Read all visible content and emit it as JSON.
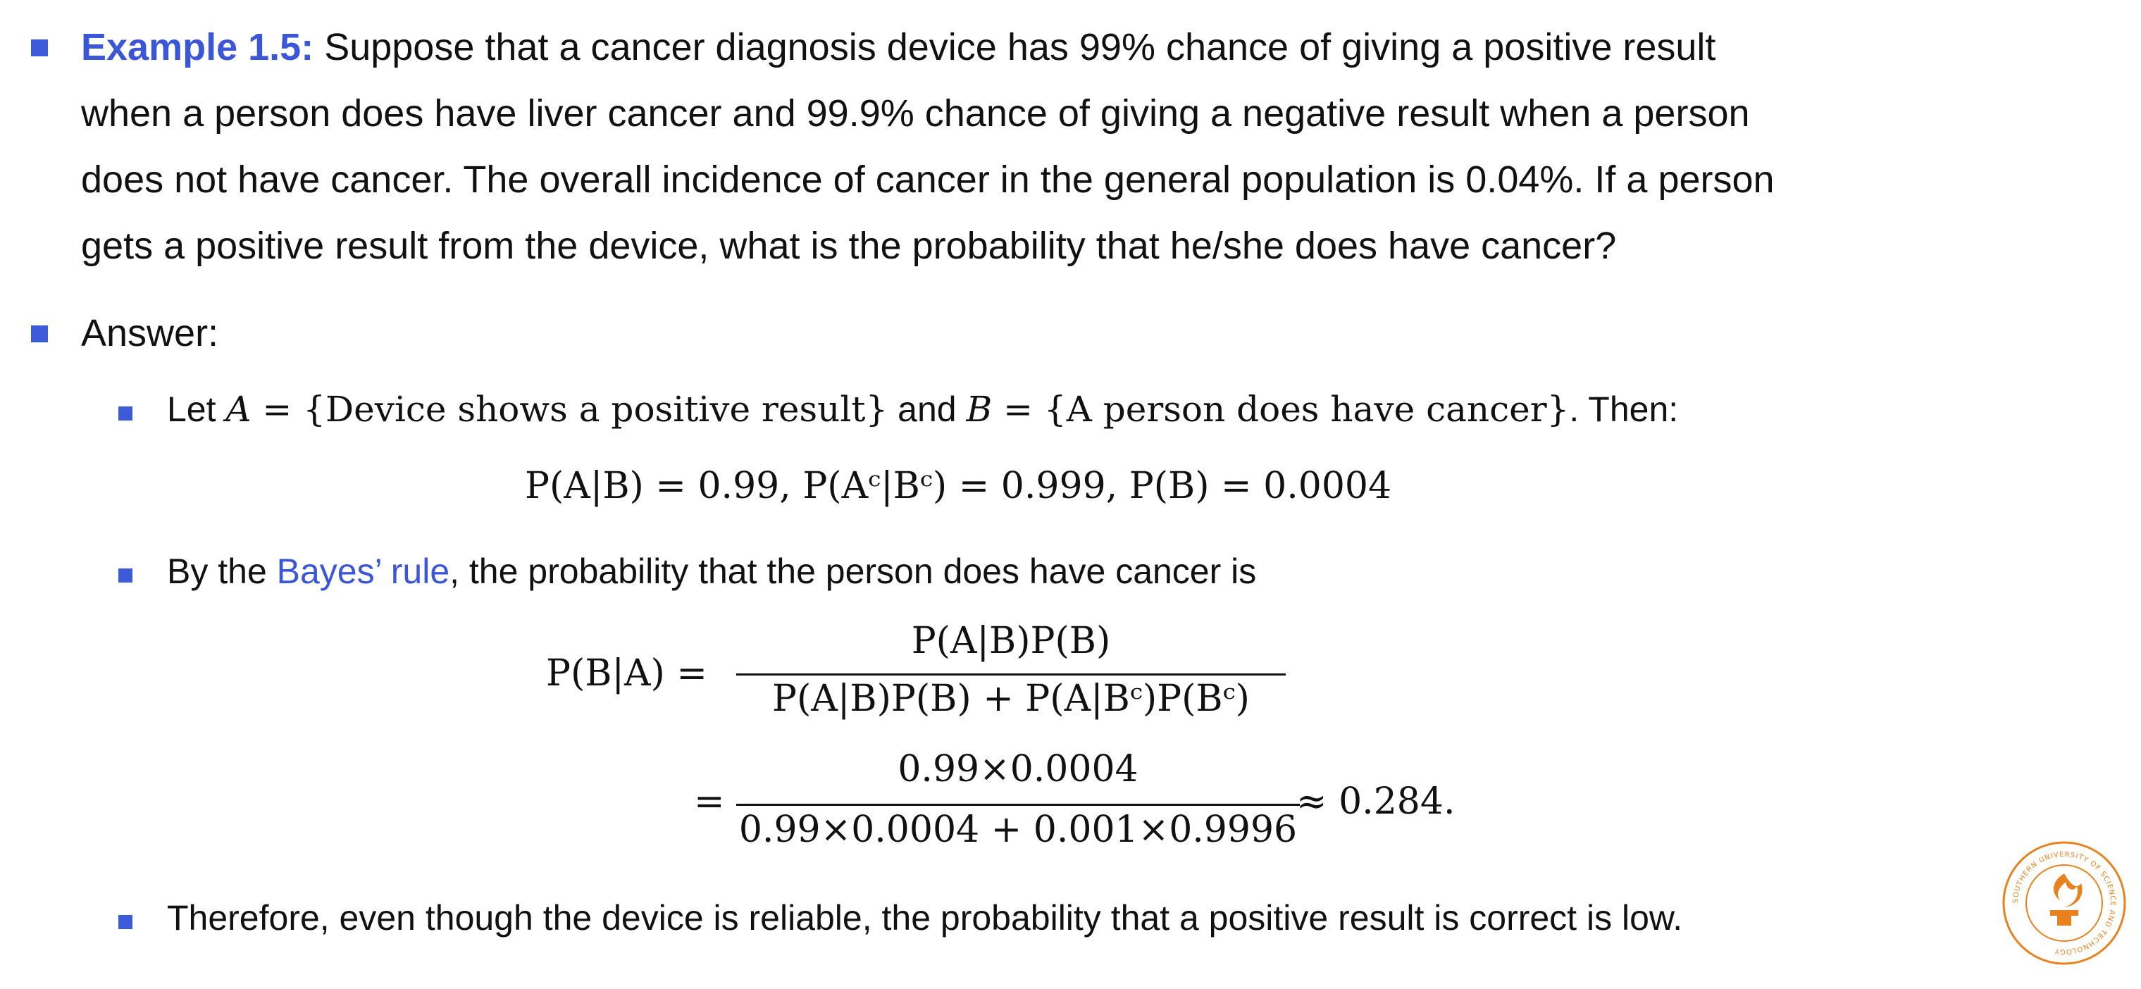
{
  "example": {
    "label": "Example 1.5:",
    "lines": [
      "Suppose that a cancer diagnosis device has 99% chance of giving a positive result",
      "when a person does have liver cancer and 99.9% chance of giving a negative result when a person",
      "does not have cancer. The overall incidence of cancer in the general population is 0.04%. If a person",
      "gets a positive result from the device, what is the probability that he/she does have cancer?"
    ]
  },
  "answer_label": "Answer:",
  "let_statement": {
    "prefix": "Let ",
    "set_a": "{Device shows a positive result}",
    "middle": " and ",
    "set_b": "{A person does have cancer}",
    "suffix": ". Then:",
    "equation": "P(A|B) = 0.99, P(Aᶜ|Bᶜ) = 0.999, P(B) = 0.0004"
  },
  "bayes": {
    "prefix": "By the ",
    "link": "Bayes’ rule",
    "suffix": ", the probability that the person does have cancer is",
    "lhs": "P(B|A) =",
    "numerator": "P(A|B)P(B)",
    "denominator": "P(A|B)P(B) + P(A|Bᶜ)P(Bᶜ)",
    "num2": "0.99×0.0004",
    "den2": "0.99×0.0004 + 0.001×0.9996",
    "result": "≈ 0.284."
  },
  "conclusion": "Therefore, even though the device is reliable, the probability that a positive result is correct is low.",
  "logo": {
    "ring_text": "SOUTHERN UNIVERSITY OF SCIENCE AND TECHNOLOGY",
    "brand_color": "#e8821e"
  },
  "colors": {
    "accent": "#3b56d6",
    "bullet": "#3d5bd9"
  }
}
